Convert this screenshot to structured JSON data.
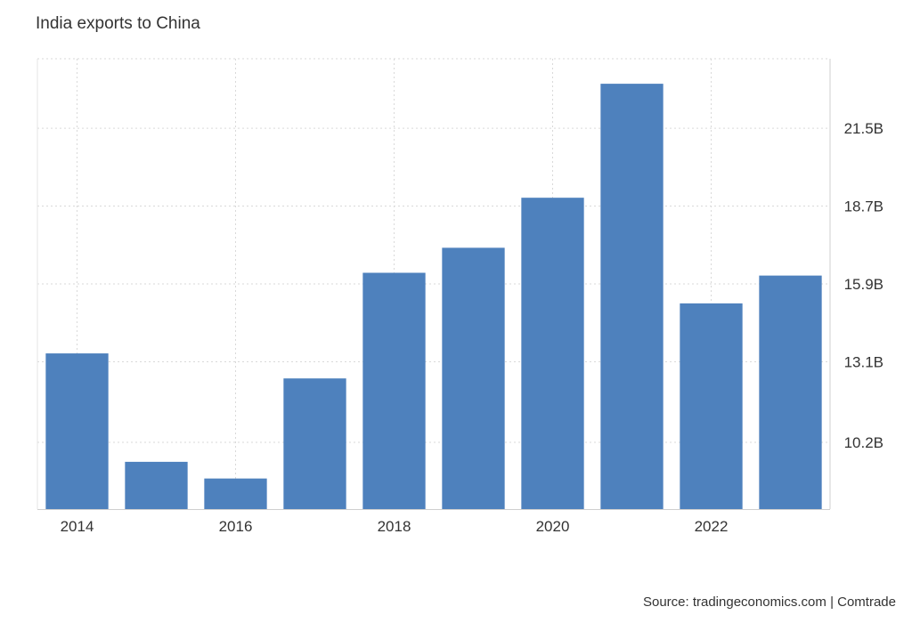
{
  "chart_data": {
    "type": "bar",
    "title": "India exports to China",
    "categories": [
      "2014",
      "2015",
      "2016",
      "2017",
      "2018",
      "2019",
      "2020",
      "2021",
      "2022",
      "2023"
    ],
    "values": [
      13.4,
      9.5,
      8.9,
      12.5,
      16.3,
      17.2,
      19.0,
      23.1,
      15.2,
      16.2
    ],
    "x_tick_labels": [
      "2014",
      "2016",
      "2018",
      "2020",
      "2022"
    ],
    "y_ticks": [
      10.2,
      13.1,
      15.9,
      18.7,
      21.5
    ],
    "y_tick_labels": [
      "10.2B",
      "13.1B",
      "15.9B",
      "18.7B",
      "21.5B"
    ],
    "ylim": [
      7.8,
      24.0
    ],
    "y_axis_side": "right",
    "grid": true,
    "bar_color": "#4e81bd"
  },
  "source": "Source: tradingeconomics.com | Comtrade"
}
